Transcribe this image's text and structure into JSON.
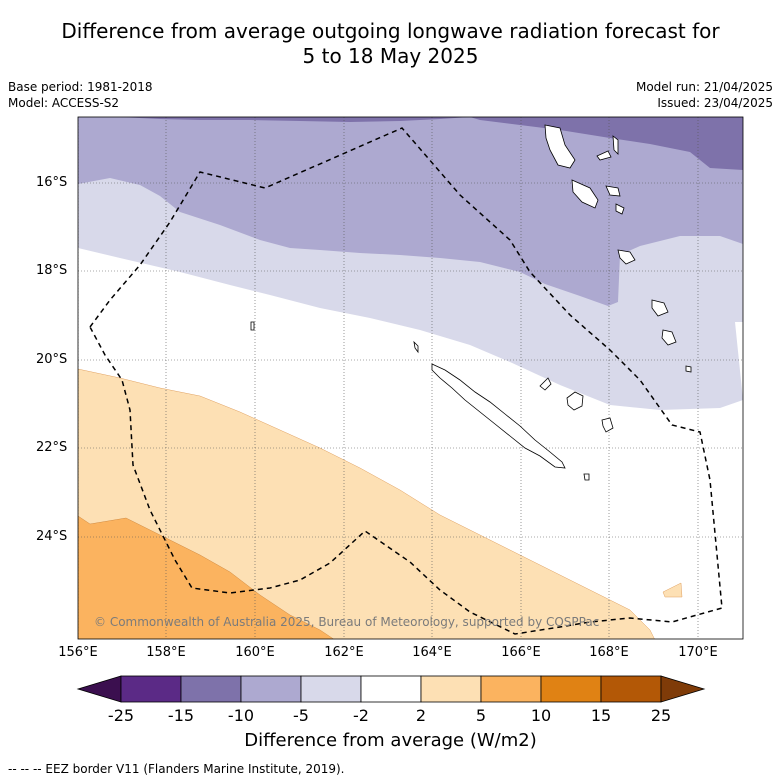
{
  "title_line1": "Difference from average outgoing longwave radiation forecast for",
  "title_line2": "5 to 18 May 2025",
  "meta_left": [
    "Base period: 1981-2018",
    "Model: ACCESS-S2"
  ],
  "meta_right": [
    "Model run: 21/04/2025",
    "Issued: 23/04/2025"
  ],
  "y_ticks": [
    "16°S",
    "18°S",
    "20°S",
    "22°S",
    "24°S"
  ],
  "x_ticks": [
    "156°E",
    "158°E",
    "160°E",
    "162°E",
    "164°E",
    "166°E",
    "168°E",
    "170°E"
  ],
  "copyright": "© Commonwealth of Australia 2025, Bureau of Meteorology, supported by COSPPac",
  "colorbar": {
    "labels": [
      "-25",
      "-15",
      "-10",
      "-5",
      "-2",
      "2",
      "5",
      "10",
      "15",
      "25"
    ],
    "colors": [
      "#3b0f4f",
      "#5b2a86",
      "#7e72aa",
      "#ada9d0",
      "#d8d9ea",
      "#ffffff",
      "#fde0b4",
      "#fbb35f",
      "#e08214",
      "#b35806",
      "#7f3b08"
    ],
    "title": "Difference from average (W/m2)"
  },
  "footer": "--  --  -- EEZ border V11 (Flanders Marine Institute, 2019)."
}
